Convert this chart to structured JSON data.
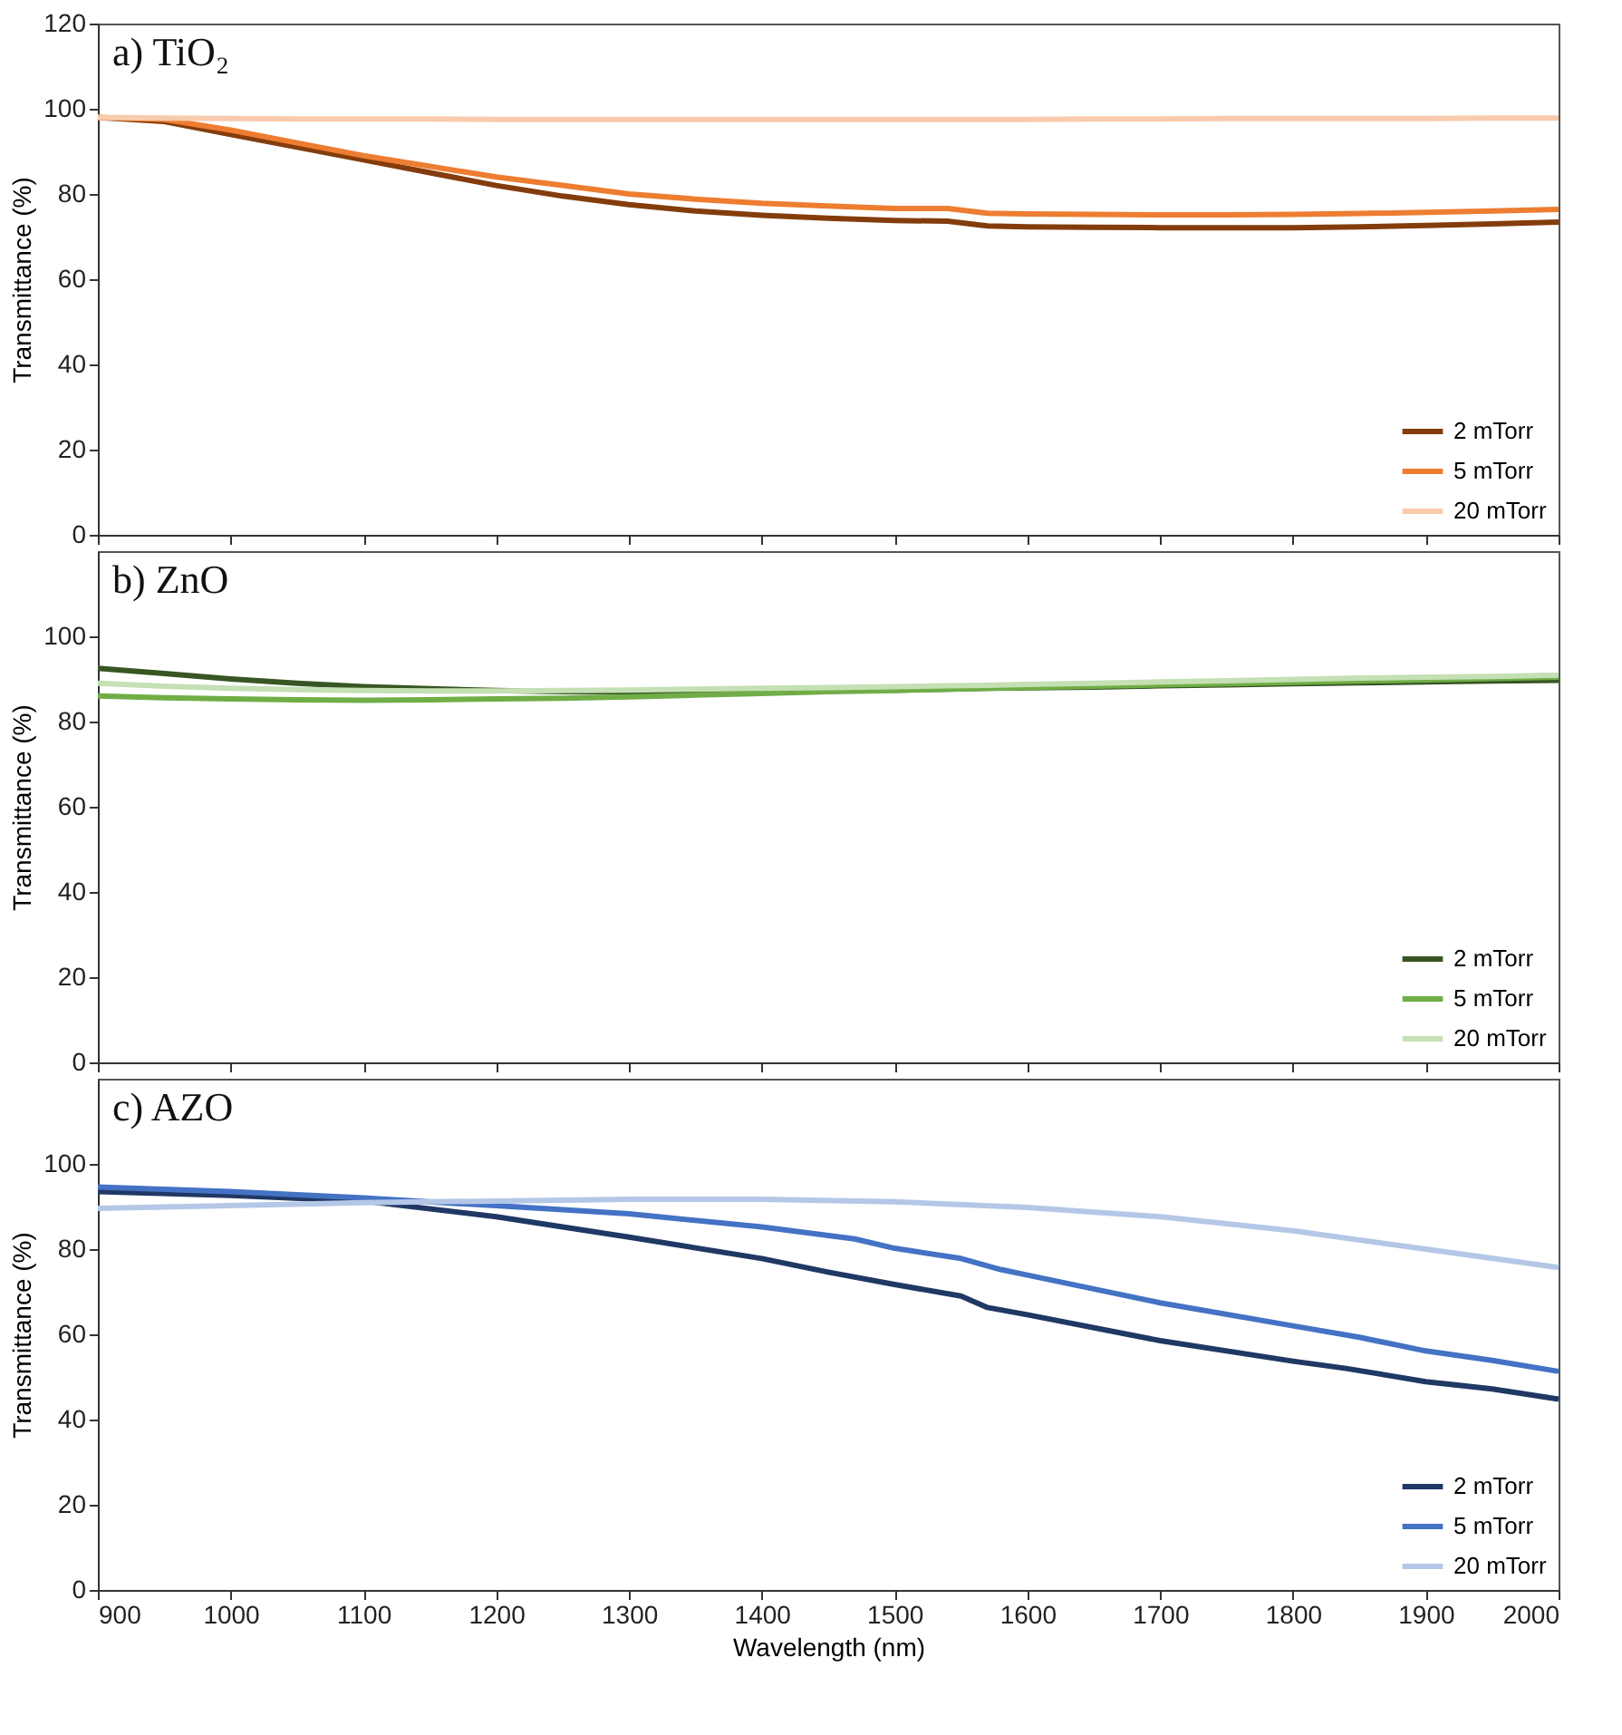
{
  "chart_data": [
    {
      "type": "line",
      "title": "a) TiO₂",
      "ylabel": "Transmittance (%)",
      "xlim": [
        900,
        2000
      ],
      "xticks": [
        900,
        1000,
        1100,
        1200,
        1300,
        1400,
        1500,
        1600,
        1700,
        1800,
        1900,
        2000
      ],
      "ylim": [
        0,
        120
      ],
      "yticks": [
        0,
        20,
        40,
        60,
        80,
        100,
        120
      ],
      "tick_labels": "y",
      "grid": false,
      "legend": "bottom right",
      "x": [
        900,
        950,
        1000,
        1050,
        1100,
        1150,
        1200,
        1250,
        1300,
        1350,
        1400,
        1450,
        1500,
        1540,
        1570,
        1600,
        1650,
        1700,
        1750,
        1800,
        1850,
        1900,
        1950,
        2000
      ],
      "series": [
        {
          "name": "2 mTorr",
          "color": "#843c0c",
          "values": [
            98,
            97,
            94,
            91,
            88,
            85,
            82,
            79.5,
            77.5,
            76,
            75,
            74.3,
            73.8,
            73.6,
            72.5,
            72.3,
            72.2,
            72.1,
            72.1,
            72.1,
            72.3,
            72.6,
            73,
            73.4
          ]
        },
        {
          "name": "5 mTorr",
          "color": "#ed7d31",
          "values": [
            98,
            97.5,
            95,
            92,
            89,
            86.5,
            84,
            82,
            80,
            78.8,
            77.8,
            77.2,
            76.6,
            76.6,
            75.5,
            75.3,
            75.2,
            75.1,
            75.1,
            75.2,
            75.4,
            75.7,
            76,
            76.4
          ]
        },
        {
          "name": "20 mTorr",
          "color": "#f8cbad",
          "values": [
            98,
            97.8,
            97.7,
            97.6,
            97.6,
            97.6,
            97.5,
            97.5,
            97.5,
            97.5,
            97.5,
            97.5,
            97.5,
            97.5,
            97.5,
            97.5,
            97.6,
            97.6,
            97.7,
            97.7,
            97.7,
            97.7,
            97.8,
            97.8
          ]
        }
      ]
    },
    {
      "type": "line",
      "title": "b) ZnO",
      "ylabel": "Transmittance (%)",
      "xlim": [
        900,
        2000
      ],
      "xticks": [
        900,
        1000,
        1100,
        1200,
        1300,
        1400,
        1500,
        1600,
        1700,
        1800,
        1900,
        2000
      ],
      "ylim": [
        0,
        120
      ],
      "yticks": [
        0,
        20,
        40,
        60,
        80,
        100
      ],
      "tick_labels": "y",
      "grid": false,
      "legend": "bottom right",
      "x": [
        900,
        950,
        1000,
        1050,
        1100,
        1150,
        1200,
        1250,
        1300,
        1350,
        1400,
        1450,
        1500,
        1540,
        1570,
        1600,
        1650,
        1700,
        1750,
        1800,
        1850,
        1900,
        1950,
        2000
      ],
      "series": [
        {
          "name": "2 mTorr",
          "color": "#375623",
          "values": [
            92.5,
            91.3,
            90.0,
            89.0,
            88.2,
            87.7,
            87.3,
            87.0,
            86.9,
            87.0,
            87.1,
            87.2,
            87.4,
            87.6,
            87.8,
            87.9,
            88.1,
            88.4,
            88.6,
            88.9,
            89.1,
            89.3,
            89.5,
            89.7
          ]
        },
        {
          "name": "5 mTorr",
          "color": "#70ad47",
          "values": [
            86,
            85.6,
            85.3,
            85.1,
            85.0,
            85.1,
            85.3,
            85.5,
            85.8,
            86.2,
            86.6,
            87,
            87.3,
            87.6,
            87.8,
            88,
            88.3,
            88.6,
            88.9,
            89.2,
            89.5,
            89.8,
            90.1,
            90.4
          ]
        },
        {
          "name": "20 mTorr",
          "color": "#c5e0b4",
          "values": [
            89,
            88.3,
            87.8,
            87.5,
            87.3,
            87.2,
            87.2,
            87.3,
            87.4,
            87.6,
            87.8,
            88,
            88.2,
            88.4,
            88.5,
            88.7,
            89,
            89.3,
            89.6,
            89.9,
            90.2,
            90.4,
            90.6,
            90.9
          ]
        }
      ]
    },
    {
      "type": "line",
      "title": "c) AZO",
      "xlabel": "Wavelength (nm)",
      "ylabel": "Transmittance (%)",
      "xlim": [
        900,
        2000
      ],
      "xticks": [
        900,
        1000,
        1100,
        1200,
        1300,
        1400,
        1500,
        1600,
        1700,
        1800,
        1900,
        2000
      ],
      "ylim": [
        0,
        120
      ],
      "yticks": [
        0,
        20,
        40,
        60,
        80,
        100
      ],
      "grid": false,
      "legend": "bottom right",
      "series": [
        {
          "name": "2 mTorr",
          "color": "#203864",
          "x": [
            900,
            1000,
            1100,
            1200,
            1300,
            1400,
            1450,
            1500,
            1550,
            1570,
            1600,
            1700,
            1800,
            1840,
            1900,
            1950,
            2000
          ],
          "values": [
            93.5,
            92.6,
            91.3,
            87.6,
            82.8,
            77.8,
            74.6,
            71.7,
            69,
            66.3,
            64.6,
            58.5,
            53.7,
            52,
            48.9,
            47.2,
            44.8
          ]
        },
        {
          "name": "5 mTorr",
          "color": "#4472c4",
          "x": [
            900,
            1000,
            1100,
            1200,
            1300,
            1400,
            1470,
            1500,
            1550,
            1580,
            1600,
            1700,
            1800,
            1850,
            1900,
            1950,
            2000
          ],
          "values": [
            94.6,
            93.5,
            92,
            90.2,
            88.3,
            85.2,
            82.4,
            80.2,
            77.8,
            75.2,
            73.9,
            67.4,
            62,
            59.3,
            56.1,
            53.9,
            51.3
          ]
        },
        {
          "name": "20 mTorr",
          "color": "#b4c7e7",
          "x": [
            900,
            1000,
            1100,
            1200,
            1300,
            1400,
            1500,
            1600,
            1700,
            1800,
            1900,
            2000
          ],
          "values": [
            89.6,
            90.2,
            90.9,
            91.3,
            91.7,
            91.7,
            91.1,
            89.8,
            87.6,
            84.3,
            80,
            75.7
          ]
        }
      ]
    }
  ]
}
